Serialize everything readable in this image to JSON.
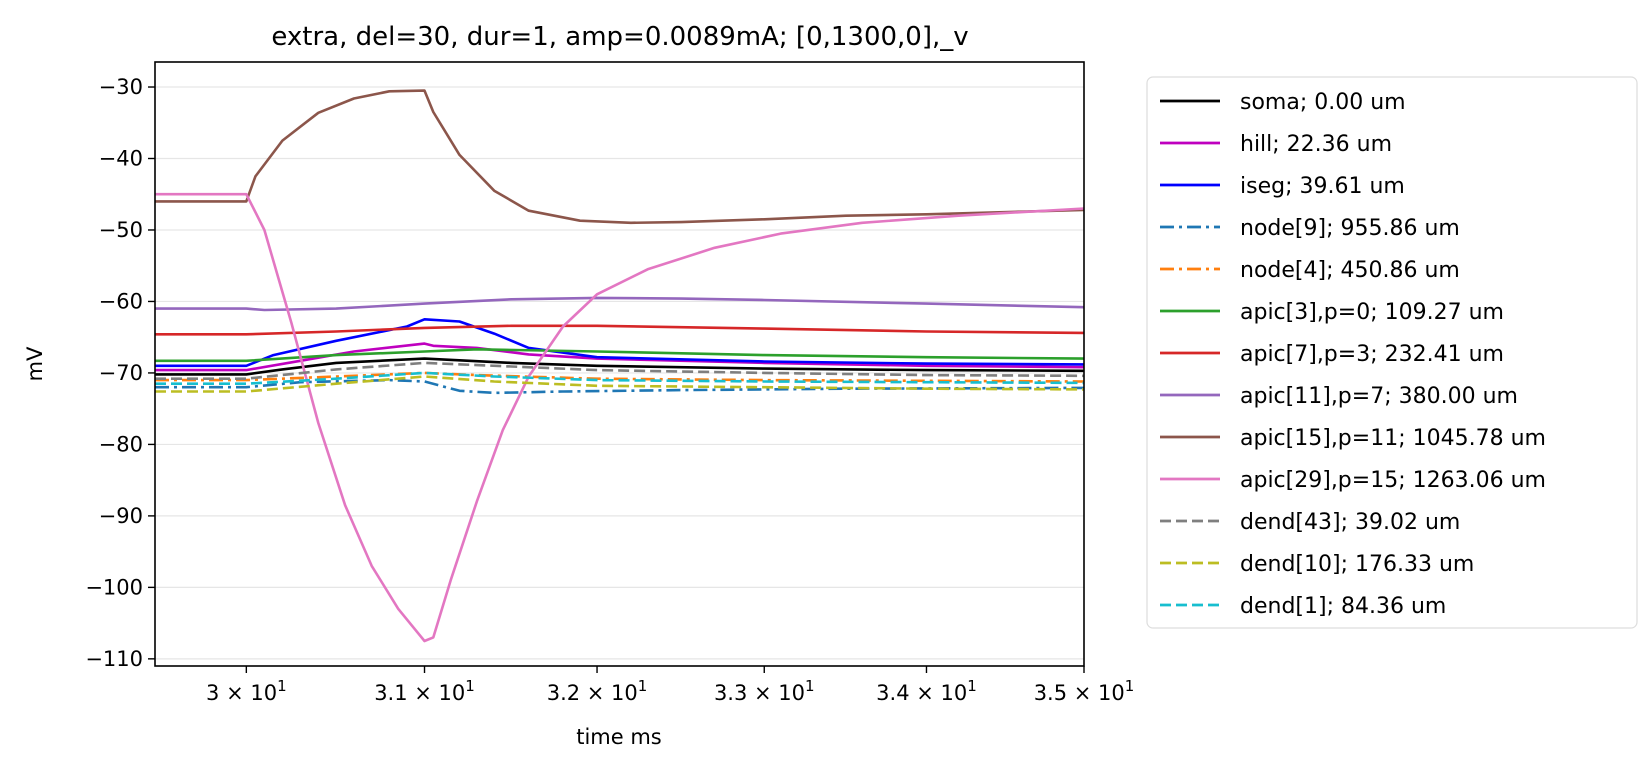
{
  "chart_data": {
    "type": "line",
    "title": "extra, del=30, dur=1, amp=0.0089mA; [0,1300,0],_v",
    "xlabel": "time ms",
    "ylabel": "mV",
    "xscale": "log",
    "xlim": [
      29.5,
      35
    ],
    "ylim": [
      -111,
      -26.5
    ],
    "grid": "horizontal",
    "legend_position": "outside-right",
    "x_ticks": [
      {
        "value": 30,
        "mantissa": "3",
        "exponent": "1"
      },
      {
        "value": 31,
        "mantissa": "3.1",
        "exponent": "1"
      },
      {
        "value": 32,
        "mantissa": "3.2",
        "exponent": "1"
      },
      {
        "value": 33,
        "mantissa": "3.3",
        "exponent": "1"
      },
      {
        "value": 34,
        "mantissa": "3.4",
        "exponent": "1"
      },
      {
        "value": 35,
        "mantissa": "3.5",
        "exponent": "1"
      }
    ],
    "x_tick_base": "10",
    "y_ticks": [
      {
        "value": -30,
        "label": "−30"
      },
      {
        "value": -40,
        "label": "−40"
      },
      {
        "value": -50,
        "label": "−50"
      },
      {
        "value": -60,
        "label": "−60"
      },
      {
        "value": -70,
        "label": "−70"
      },
      {
        "value": -80,
        "label": "−80"
      },
      {
        "value": -90,
        "label": "−90"
      },
      {
        "value": -100,
        "label": "−100"
      },
      {
        "value": -110,
        "label": "−110"
      }
    ],
    "series": [
      {
        "name": "soma; 0.00 um",
        "color": "#000000",
        "dash": "solid",
        "x": [
          29.5,
          30.0,
          30.2,
          30.5,
          31.0,
          31.5,
          32.0,
          33.0,
          34.0,
          35.0
        ],
        "y": [
          -70.2,
          -70.2,
          -69.5,
          -68.6,
          -68.0,
          -68.6,
          -69.0,
          -69.4,
          -69.6,
          -69.7
        ]
      },
      {
        "name": "hill; 22.36 um",
        "color": "#bf00bf",
        "dash": "solid",
        "x": [
          29.5,
          30.0,
          30.3,
          30.6,
          31.0,
          31.05,
          31.3,
          31.6,
          32.0,
          33.0,
          34.0,
          35.0
        ],
        "y": [
          -69.6,
          -69.6,
          -68.3,
          -67.0,
          -65.9,
          -66.2,
          -66.5,
          -67.4,
          -68.0,
          -68.6,
          -69.0,
          -69.2
        ]
      },
      {
        "name": "iseg; 39.61 um",
        "color": "#0000ff",
        "dash": "solid",
        "x": [
          29.5,
          30.0,
          30.15,
          30.5,
          30.9,
          31.0,
          31.2,
          31.4,
          31.6,
          32.0,
          33.0,
          34.0,
          35.0
        ],
        "y": [
          -69.0,
          -69.0,
          -67.5,
          -65.5,
          -63.5,
          -62.5,
          -62.8,
          -64.5,
          -66.5,
          -67.8,
          -68.4,
          -68.7,
          -68.8
        ]
      },
      {
        "name": "node[9]; 955.86 um",
        "color": "#1f77b4",
        "dash": "dashdot",
        "x": [
          29.5,
          30.0,
          30.3,
          30.8,
          31.0,
          31.2,
          31.4,
          31.8,
          32.5,
          33.5,
          35.0
        ],
        "y": [
          -72.0,
          -72.0,
          -71.3,
          -71.0,
          -71.2,
          -72.5,
          -72.8,
          -72.6,
          -72.4,
          -72.2,
          -72.1
        ]
      },
      {
        "name": "node[4]; 450.86 um",
        "color": "#ff7f0e",
        "dash": "dashdot",
        "x": [
          29.5,
          30.0,
          30.5,
          31.0,
          31.3,
          32.0,
          33.0,
          35.0
        ],
        "y": [
          -71.0,
          -71.0,
          -70.5,
          -70.0,
          -70.3,
          -70.8,
          -71.0,
          -71.2
        ]
      },
      {
        "name": "apic[3],p=0; 109.27 um",
        "color": "#2ca02c",
        "dash": "solid",
        "x": [
          29.5,
          30.0,
          30.5,
          31.0,
          31.3,
          32.0,
          33.0,
          34.0,
          35.0
        ],
        "y": [
          -68.3,
          -68.3,
          -67.5,
          -67.0,
          -66.7,
          -67.0,
          -67.5,
          -67.8,
          -68.0
        ]
      },
      {
        "name": "apic[7],p=3; 232.41 um",
        "color": "#d62728",
        "dash": "solid",
        "x": [
          29.5,
          30.0,
          30.5,
          31.0,
          31.5,
          32.0,
          33.0,
          34.0,
          35.0
        ],
        "y": [
          -64.6,
          -64.6,
          -64.2,
          -63.7,
          -63.4,
          -63.4,
          -63.8,
          -64.2,
          -64.4
        ]
      },
      {
        "name": "apic[11],p=7; 380.00 um",
        "color": "#9467bd",
        "dash": "solid",
        "x": [
          29.5,
          30.0,
          30.1,
          30.5,
          31.0,
          31.5,
          32.0,
          32.5,
          33.0,
          34.0,
          35.0
        ],
        "y": [
          -61.0,
          -61.0,
          -61.2,
          -61.0,
          -60.3,
          -59.7,
          -59.5,
          -59.6,
          -59.8,
          -60.3,
          -60.8
        ]
      },
      {
        "name": "apic[15],p=11; 1045.78 um",
        "color": "#8c564b",
        "dash": "solid",
        "x": [
          29.5,
          30.0,
          30.05,
          30.2,
          30.4,
          30.6,
          30.8,
          31.0,
          31.05,
          31.2,
          31.4,
          31.6,
          31.9,
          32.2,
          32.5,
          33.0,
          33.5,
          34.0,
          35.0
        ],
        "y": [
          -46.0,
          -46.0,
          -42.5,
          -37.5,
          -33.6,
          -31.6,
          -30.6,
          -30.5,
          -33.5,
          -39.5,
          -44.5,
          -47.3,
          -48.7,
          -49.0,
          -48.9,
          -48.5,
          -48.0,
          -47.8,
          -47.2
        ]
      },
      {
        "name": "apic[29],p=15; 1263.06 um",
        "color": "#e377c2",
        "dash": "solid",
        "x": [
          29.5,
          30.0,
          30.1,
          30.25,
          30.4,
          30.55,
          30.7,
          30.85,
          31.0,
          31.05,
          31.15,
          31.3,
          31.45,
          31.6,
          31.8,
          32.0,
          32.3,
          32.7,
          33.1,
          33.6,
          34.2,
          35.0
        ],
        "y": [
          -45.0,
          -45.0,
          -50.0,
          -63.0,
          -77.0,
          -88.5,
          -97.0,
          -103.0,
          -107.5,
          -107.0,
          -99.0,
          -88.0,
          -78.0,
          -70.5,
          -63.5,
          -59.0,
          -55.5,
          -52.5,
          -50.5,
          -49.0,
          -48.0,
          -47.0
        ]
      },
      {
        "name": "dend[43]; 39.02 um",
        "color": "#7f7f7f",
        "dash": "dashed",
        "x": [
          29.5,
          30.0,
          30.5,
          31.0,
          31.5,
          32.0,
          33.0,
          34.0,
          35.0
        ],
        "y": [
          -70.8,
          -70.8,
          -69.5,
          -68.6,
          -69.1,
          -69.6,
          -70.0,
          -70.3,
          -70.4
        ]
      },
      {
        "name": "dend[10]; 176.33 um",
        "color": "#bcbd22",
        "dash": "dashed",
        "x": [
          29.5,
          30.0,
          30.5,
          31.0,
          31.4,
          32.0,
          33.0,
          34.0,
          35.0
        ],
        "y": [
          -72.6,
          -72.6,
          -71.5,
          -70.5,
          -71.2,
          -71.8,
          -72.0,
          -72.2,
          -72.3
        ]
      },
      {
        "name": "dend[1]; 84.36 um",
        "color": "#17becf",
        "dash": "dashed",
        "x": [
          29.5,
          30.0,
          30.5,
          31.0,
          31.4,
          32.0,
          33.0,
          34.0,
          35.0
        ],
        "y": [
          -71.5,
          -71.5,
          -70.8,
          -70.0,
          -70.5,
          -71.0,
          -71.2,
          -71.3,
          -71.4
        ]
      }
    ]
  }
}
